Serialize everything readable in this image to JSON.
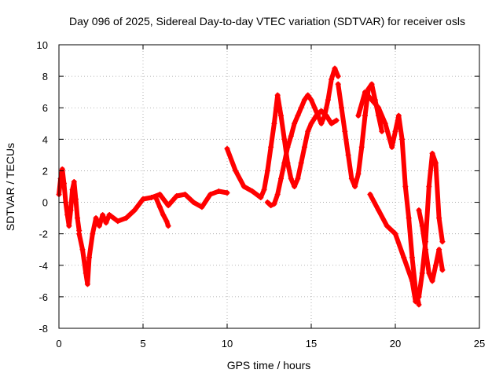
{
  "chart_data": {
    "type": "scatter",
    "title": "Day 096 of 2025, Sidereal Day-to-day VTEC variation (SDTVAR) for receiver osls",
    "xlabel": "GPS time / hours",
    "ylabel": "SDTVAR / TECUs",
    "xlim": [
      0,
      25
    ],
    "ylim": [
      -8,
      10
    ],
    "xticks": [
      "0",
      "5",
      "10",
      "15",
      "20",
      "25"
    ],
    "yticks": [
      "-8",
      "-6",
      "-4",
      "-2",
      "0",
      "2",
      "4",
      "6",
      "8",
      "10"
    ],
    "grid": true,
    "marker": "+",
    "color": "#ff0000",
    "series": [
      {
        "name": "s1",
        "x": [
          0.0,
          0.1,
          0.2,
          0.3,
          0.4,
          0.5,
          0.6,
          0.7,
          0.8,
          0.9,
          1.0,
          1.1,
          1.2
        ],
        "y": [
          0.5,
          1.5,
          2.1,
          1.2,
          0.0,
          -0.8,
          -1.5,
          -0.5,
          0.8,
          1.3,
          0.2,
          -1.0,
          -1.8
        ]
      },
      {
        "name": "s2",
        "x": [
          1.2,
          1.4,
          1.6,
          1.7,
          1.8,
          2.0,
          2.2,
          2.4,
          2.6,
          2.8,
          3.0
        ],
        "y": [
          -2.0,
          -3.0,
          -4.5,
          -5.2,
          -3.5,
          -2.0,
          -1.0,
          -1.5,
          -0.8,
          -1.3,
          -0.8
        ]
      },
      {
        "name": "s3",
        "x": [
          3.0,
          3.5,
          4.0,
          4.5,
          5.0,
          5.5,
          6.0,
          6.5,
          7.0,
          7.5,
          8.0,
          8.5,
          9.0,
          9.5,
          10.0
        ],
        "y": [
          -0.8,
          -1.2,
          -1.0,
          -0.5,
          0.2,
          0.3,
          0.5,
          -0.2,
          0.4,
          0.5,
          0.0,
          -0.3,
          0.5,
          0.7,
          0.6
        ]
      },
      {
        "name": "s4",
        "x": [
          5.8,
          6.0,
          6.2,
          6.4,
          6.5
        ],
        "y": [
          0.2,
          -0.3,
          -0.8,
          -1.2,
          -1.5
        ]
      },
      {
        "name": "s5",
        "x": [
          10.0,
          10.5,
          11.0,
          11.5,
          12.0,
          12.2,
          12.4,
          12.6,
          12.8,
          13.0,
          13.2,
          13.4,
          13.6,
          13.8,
          14.0,
          14.2,
          14.4,
          14.6,
          14.8,
          15.0,
          15.3,
          15.6,
          15.9,
          16.2,
          16.5
        ],
        "y": [
          3.4,
          2.0,
          1.0,
          0.7,
          0.3,
          0.8,
          2.0,
          3.5,
          5.0,
          6.8,
          5.5,
          4.0,
          2.5,
          1.5,
          1.0,
          1.5,
          2.5,
          3.5,
          4.5,
          5.0,
          5.5,
          5.8,
          5.5,
          5.0,
          5.2
        ]
      },
      {
        "name": "s6",
        "x": [
          12.4,
          12.6,
          12.8,
          13.0,
          13.2,
          13.4,
          13.6,
          13.8,
          14.0,
          14.2,
          14.4,
          14.6,
          14.8,
          15.0,
          15.2,
          15.4,
          15.6,
          15.8,
          16.0,
          16.2,
          16.4,
          16.6
        ],
        "y": [
          0.0,
          -0.2,
          -0.1,
          0.5,
          1.5,
          2.5,
          3.5,
          4.2,
          5.0,
          5.5,
          6.0,
          6.5,
          6.8,
          6.5,
          6.0,
          5.5,
          5.0,
          5.5,
          6.5,
          7.8,
          8.5,
          8.0
        ]
      },
      {
        "name": "s7",
        "x": [
          16.6,
          16.8,
          17.0,
          17.2,
          17.4,
          17.6,
          17.8,
          18.0,
          18.2,
          18.4,
          18.6,
          18.8,
          19.0,
          19.2
        ],
        "y": [
          7.5,
          6.0,
          4.5,
          3.0,
          1.5,
          1.0,
          1.8,
          3.5,
          5.5,
          7.2,
          7.5,
          6.5,
          5.5,
          4.5
        ]
      },
      {
        "name": "s8",
        "x": [
          17.8,
          18.2,
          18.6,
          19.0,
          19.4,
          19.8,
          20.0,
          20.2,
          20.4,
          20.6,
          20.8,
          21.0,
          21.2,
          21.4
        ],
        "y": [
          5.5,
          7.0,
          6.5,
          6.0,
          5.0,
          3.5,
          4.5,
          5.5,
          4.0,
          1.0,
          -1.0,
          -3.5,
          -5.5,
          -6.5
        ]
      },
      {
        "name": "s9",
        "x": [
          18.5,
          19.0,
          19.5,
          20.0,
          20.5,
          21.0,
          21.2,
          21.4,
          21.6,
          21.8,
          22.0,
          22.2,
          22.4,
          22.6,
          22.8
        ],
        "y": [
          0.5,
          -0.5,
          -1.5,
          -2.0,
          -3.5,
          -5.0,
          -6.3,
          -6.0,
          -4.5,
          -2.5,
          1.0,
          3.1,
          2.5,
          -1.0,
          -2.5
        ]
      },
      {
        "name": "s10",
        "x": [
          21.4,
          21.6,
          21.8,
          22.0,
          22.2,
          22.4,
          22.6,
          22.8
        ],
        "y": [
          -0.5,
          -1.5,
          -3.0,
          -4.5,
          -5.0,
          -4.0,
          -3.0,
          -4.3
        ]
      }
    ]
  }
}
